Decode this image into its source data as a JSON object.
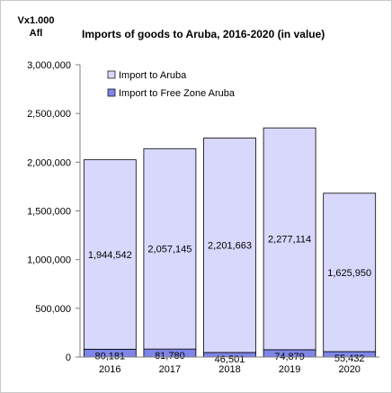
{
  "chart_data": {
    "type": "bar",
    "title": "Imports of goods to Aruba, 2016-2020 (in value)",
    "unit_label": [
      "Vx1.000",
      "Afl"
    ],
    "categories": [
      "2016",
      "2017",
      "2018",
      "2019",
      "2020"
    ],
    "series": [
      {
        "name": "Import to Free Zone Aruba",
        "values": [
          80181,
          81780,
          46501,
          74879,
          55432
        ],
        "value_labels": [
          "80,181",
          "81,780",
          "46,501",
          "74,879",
          "55,432"
        ],
        "color": "#7F86E8"
      },
      {
        "name": "Import to Aruba",
        "values": [
          1944542,
          2057145,
          2201663,
          2277114,
          1625950
        ],
        "value_labels": [
          "1,944,542",
          "2,057,145",
          "2,201,663",
          "2,277,114",
          "1,625,950"
        ],
        "color": "#D8D8FC"
      }
    ],
    "stacked": true,
    "ylim": [
      0,
      3000000
    ],
    "yticks": [
      0,
      500000,
      1000000,
      1500000,
      2000000,
      2500000,
      3000000
    ],
    "ytick_labels": [
      "0",
      "500,000",
      "1,000,000",
      "1,500,000",
      "2,000,000",
      "2,500,000",
      "3,000,000"
    ],
    "legend": {
      "placement": "top-left",
      "order": [
        "Import to Aruba",
        "Import to Free Zone Aruba"
      ]
    },
    "grid": false,
    "axis_color": "#7f7f7f",
    "bar_border_color": "#000000"
  }
}
